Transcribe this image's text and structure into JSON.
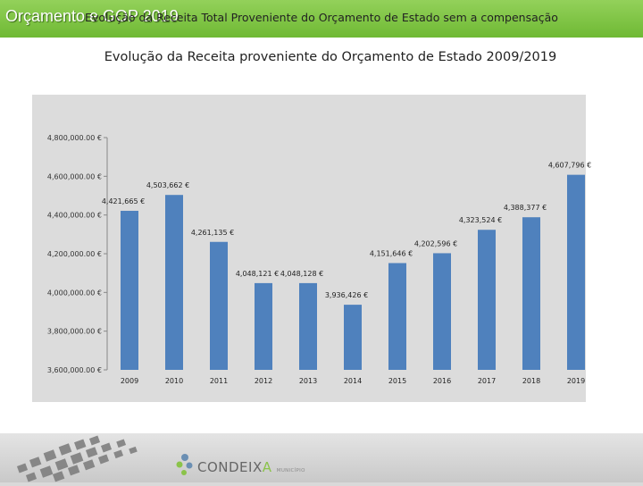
{
  "header": {
    "title": "Orçamento e GOP 2019"
  },
  "subtitle": "Evolução da Receita proveniente do Orçamento de Estado 2009/2019",
  "logo": {
    "name_main": "CONDEIX",
    "name_accent": "A",
    "name_suffix": "MUNICÍPIO"
  },
  "colors": {
    "header": "#7ec24a",
    "bar": "#4f81bd",
    "chart_background": "#dcdcdc"
  },
  "chart_data": {
    "type": "bar",
    "title": "Evolução da Receita Total Proveniente do Orçamento de Estado sem a compensação",
    "categories": [
      "2009",
      "2010",
      "2011",
      "2012",
      "2013",
      "2014",
      "2015",
      "2016",
      "2017",
      "2018",
      "2019"
    ],
    "values": [
      4421665,
      4503662,
      4261135,
      4048121,
      4048128,
      3936426,
      4151646,
      4202596,
      4323524,
      4388377,
      4607796
    ],
    "data_labels": [
      "4,421,665 €",
      "4,503,662 €",
      "4,261,135 €",
      "4,048,121 €",
      "4,048,128 €",
      "3,936,426 €",
      "4,151,646 €",
      "4,202,596 €",
      "4,323,524 €",
      "4,388,377 €",
      "4,607,796 €"
    ],
    "ylim": [
      3600000,
      4800000
    ],
    "yticks": [
      3600000,
      3800000,
      4000000,
      4200000,
      4400000,
      4600000,
      4800000
    ],
    "ytick_labels": [
      "3,600,000.00 €",
      "3,800,000.00 €",
      "4,000,000.00 €",
      "4,200,000.00 €",
      "4,400,000.00 €",
      "4,600,000.00 €",
      "4,800,000.00 €"
    ],
    "xlabel": "",
    "ylabel": "",
    "grid": false,
    "legend": "none"
  }
}
